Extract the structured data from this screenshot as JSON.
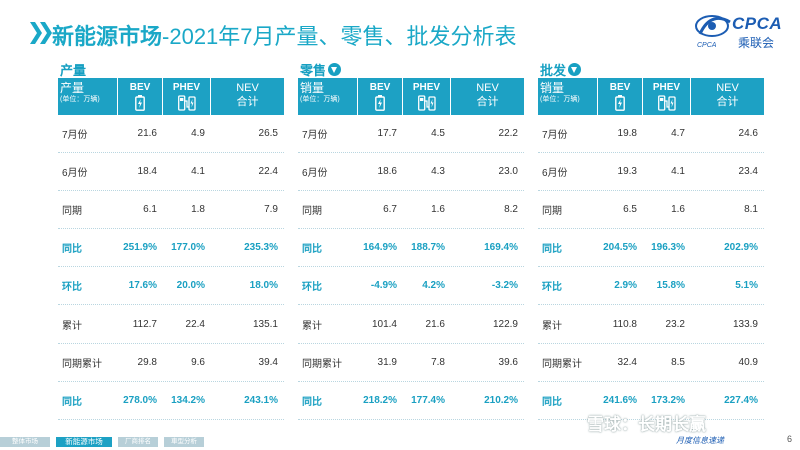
{
  "title": {
    "bold": "新能源市场",
    "rest": "-2021年7月产量、零售、批发分析表"
  },
  "logo": {
    "brand": "CPCA",
    "sub": "乘联会",
    "small": "CPCA"
  },
  "columns": {
    "bev": "BEV",
    "phev": "PHEV",
    "nev_top": "NEV",
    "nev_bottom": "合计",
    "unit": "(单位：万辆)"
  },
  "panels": [
    {
      "title": "产量",
      "header_label": "产量",
      "rows": [
        {
          "label": "7月份",
          "v": [
            "21.6",
            "4.9",
            "26.5"
          ],
          "hl": false
        },
        {
          "label": "6月份",
          "v": [
            "18.4",
            "4.1",
            "22.4"
          ],
          "hl": false
        },
        {
          "label": "同期",
          "v": [
            "6.1",
            "1.8",
            "7.9"
          ],
          "hl": false
        },
        {
          "label": "同比",
          "v": [
            "251.9%",
            "177.0%",
            "235.3%"
          ],
          "hl": true
        },
        {
          "label": "环比",
          "v": [
            "17.6%",
            "20.0%",
            "18.0%"
          ],
          "hl": true
        },
        {
          "label": "累计",
          "v": [
            "112.7",
            "22.4",
            "135.1"
          ],
          "hl": false
        },
        {
          "label": "同期累计",
          "v": [
            "29.8",
            "9.6",
            "39.4"
          ],
          "hl": false
        },
        {
          "label": "同比",
          "v": [
            "278.0%",
            "134.2%",
            "243.1%"
          ],
          "hl": true
        }
      ]
    },
    {
      "title": "零售",
      "header_label": "销量",
      "rows": [
        {
          "label": "7月份",
          "v": [
            "17.7",
            "4.5",
            "22.2"
          ],
          "hl": false
        },
        {
          "label": "6月份",
          "v": [
            "18.6",
            "4.3",
            "23.0"
          ],
          "hl": false
        },
        {
          "label": "同期",
          "v": [
            "6.7",
            "1.6",
            "8.2"
          ],
          "hl": false
        },
        {
          "label": "同比",
          "v": [
            "164.9%",
            "188.7%",
            "169.4%"
          ],
          "hl": true
        },
        {
          "label": "环比",
          "v": [
            "-4.9%",
            "4.2%",
            "-3.2%"
          ],
          "hl": true
        },
        {
          "label": "累计",
          "v": [
            "101.4",
            "21.6",
            "122.9"
          ],
          "hl": false
        },
        {
          "label": "同期累计",
          "v": [
            "31.9",
            "7.8",
            "39.6"
          ],
          "hl": false
        },
        {
          "label": "同比",
          "v": [
            "218.2%",
            "177.4%",
            "210.2%"
          ],
          "hl": true
        }
      ]
    },
    {
      "title": "批发",
      "header_label": "销量",
      "rows": [
        {
          "label": "7月份",
          "v": [
            "19.8",
            "4.7",
            "24.6"
          ],
          "hl": false
        },
        {
          "label": "6月份",
          "v": [
            "19.3",
            "4.1",
            "23.4"
          ],
          "hl": false
        },
        {
          "label": "同期",
          "v": [
            "6.5",
            "1.6",
            "8.1"
          ],
          "hl": false
        },
        {
          "label": "同比",
          "v": [
            "204.5%",
            "196.3%",
            "202.9%"
          ],
          "hl": true
        },
        {
          "label": "环比",
          "v": [
            "2.9%",
            "15.8%",
            "5.1%"
          ],
          "hl": true
        },
        {
          "label": "累计",
          "v": [
            "110.8",
            "23.2",
            "133.9"
          ],
          "hl": false
        },
        {
          "label": "同期累计",
          "v": [
            "32.4",
            "8.5",
            "40.9"
          ],
          "hl": false
        },
        {
          "label": "同比",
          "v": [
            "241.6%",
            "173.2%",
            "227.4%"
          ],
          "hl": true
        }
      ]
    }
  ],
  "footer": {
    "tabs": [
      "整体市场",
      "新能源市场",
      "厂商排名",
      "車型分析"
    ],
    "page": "6",
    "watermark": "雪球：长期长赢",
    "slogan": "月度信息速递"
  },
  "colors": {
    "accent": "#1da1c4",
    "highlight": "#1aa0c2",
    "logo": "#1c5db3"
  }
}
